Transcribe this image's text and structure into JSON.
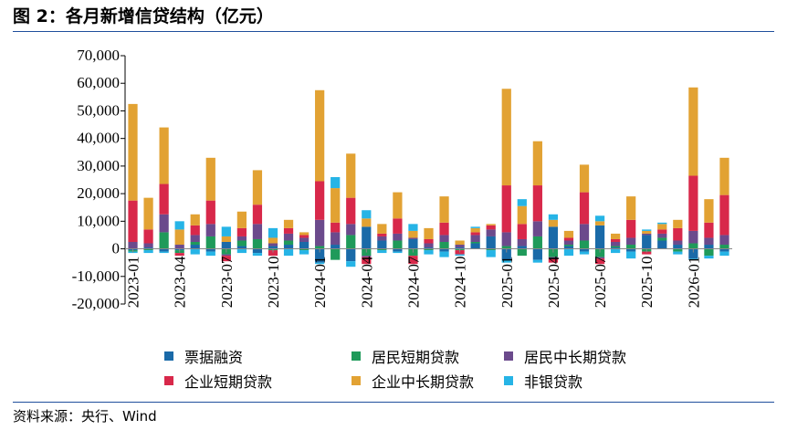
{
  "title": "图 2：各月新增信贷结构（亿元）",
  "source": "资料来源：央行、Wind",
  "colors": {
    "票据融资": "#1a6aa8",
    "居民短期贷款": "#1f9a5a",
    "居民中长期贷款": "#6b4a8c",
    "企业短期贷款": "#d8284a",
    "企业中长期贷款": "#e2a233",
    "非银贷款": "#26b4e6"
  },
  "chart_data": {
    "type": "bar",
    "stacked": true,
    "ylim": [
      -20000,
      70000
    ],
    "yticks": [
      "70,000",
      "60,000",
      "50,000",
      "40,000",
      "30,000",
      "20,000",
      "10,000",
      "0",
      "-10,000",
      "-20,000"
    ],
    "ytick_values": [
      70000,
      60000,
      50000,
      40000,
      30000,
      20000,
      10000,
      0,
      -10000,
      -20000
    ],
    "xtick_labels": [
      "2023-01",
      "2023-04",
      "2023-07",
      "2023-10",
      "2024-01",
      "2024-04",
      "2024-07",
      "2024-10",
      "2025-01",
      "2025-04",
      "2025-07",
      "2025-10",
      "2026-01"
    ],
    "xtick_indices": [
      0,
      3,
      6,
      9,
      12,
      15,
      18,
      21,
      24,
      27,
      30,
      33,
      36
    ],
    "categories": [
      "2023-01",
      "2023-02",
      "2023-03",
      "2023-04",
      "2023-05",
      "2023-06",
      "2023-07",
      "2023-08",
      "2023-09",
      "2023-10",
      "2023-11",
      "2023-12",
      "2024-01",
      "2024-02",
      "2024-03",
      "2024-04",
      "2024-05",
      "2024-06",
      "2024-07",
      "2024-08",
      "2024-09",
      "2024-10",
      "2024-11",
      "2024-12",
      "2025-01",
      "2025-02",
      "2025-03",
      "2025-04",
      "2025-05",
      "2025-06",
      "2025-07",
      "2025-08",
      "2025-09",
      "2025-10",
      "2025-11",
      "2025-12",
      "2026-01",
      "2026-02",
      "2026-03"
    ],
    "series": [
      {
        "name": "票据融资",
        "values": [
          -500,
          500,
          -1000,
          -500,
          1500,
          -1000,
          2500,
          1000,
          -1500,
          1000,
          1500,
          2500,
          -5000,
          1500,
          -4500,
          8000,
          3000,
          -1000,
          3500,
          500,
          -1000,
          500,
          2000,
          4500,
          -4000,
          1000,
          -4000,
          8000,
          1000,
          -1000,
          8500,
          500,
          -1000,
          5000,
          3000,
          1500,
          -3500,
          1500,
          -1000
        ]
      },
      {
        "name": "居民短期贷款",
        "values": [
          -500,
          -500,
          6000,
          -1000,
          1000,
          4500,
          -2000,
          2000,
          3500,
          -500,
          1500,
          -500,
          1000,
          -4000,
          5000,
          -2500,
          -500,
          3000,
          -2500,
          -500,
          2500,
          -500,
          500,
          -500,
          1000,
          -2500,
          4500,
          -3000,
          500,
          3000,
          -3000,
          500,
          1500,
          -1000,
          1000,
          -1000,
          2000,
          -2500,
          1500
        ]
      },
      {
        "name": "居民中长期贷款",
        "values": [
          2500,
          1500,
          6500,
          1500,
          2500,
          4500,
          -500,
          1500,
          5500,
          1000,
          2500,
          1500,
          9500,
          4500,
          4000,
          -500,
          1500,
          2500,
          500,
          1500,
          2500,
          1000,
          2500,
          2500,
          5000,
          2500,
          5500,
          -500,
          1500,
          6000,
          -500,
          1500,
          2500,
          500,
          1500,
          1500,
          4500,
          2500,
          3500
        ]
      },
      {
        "name": "企业短期贷款",
        "values": [
          15000,
          5000,
          11000,
          -1000,
          3500,
          8500,
          -2000,
          3000,
          7000,
          -2000,
          2000,
          1000,
          14000,
          3500,
          9500,
          -2500,
          1000,
          5500,
          -3000,
          1500,
          4500,
          -1500,
          1000,
          1500,
          17000,
          5500,
          13000,
          -1500,
          1000,
          11500,
          -2000,
          1000,
          6500,
          -1000,
          1500,
          4500,
          20000,
          5500,
          14500
        ]
      },
      {
        "name": "企业中长期贷款",
        "values": [
          35000,
          11500,
          20500,
          5500,
          4000,
          15500,
          2000,
          6000,
          12500,
          2000,
          3000,
          1000,
          33000,
          12500,
          16000,
          3000,
          3500,
          9500,
          2500,
          4000,
          9500,
          1500,
          1500,
          500,
          35000,
          6500,
          16000,
          2500,
          2500,
          10000,
          1500,
          2000,
          8500,
          1000,
          2000,
          3000,
          32000,
          8500,
          13500
        ]
      },
      {
        "name": "非银贷款",
        "values": [
          -500,
          -1000,
          -500,
          3000,
          -2000,
          -1500,
          3500,
          -1500,
          -1000,
          3500,
          -2500,
          -1500,
          -500,
          4000,
          -2000,
          3000,
          -1000,
          -500,
          2500,
          -1500,
          -2000,
          -500,
          500,
          -2500,
          -1000,
          2500,
          -1000,
          2000,
          -2500,
          -1000,
          2000,
          -1500,
          -2500,
          500,
          500,
          -1000,
          -500,
          -1000,
          -1500
        ]
      }
    ]
  },
  "legend": [
    {
      "label": "票据融资",
      "color": "#1a6aa8"
    },
    {
      "label": "居民短期贷款",
      "color": "#1f9a5a"
    },
    {
      "label": "居民中长期贷款",
      "color": "#6b4a8c"
    },
    {
      "label": "企业短期贷款",
      "color": "#d8284a"
    },
    {
      "label": "企业中长期贷款",
      "color": "#e2a233"
    },
    {
      "label": "非银贷款",
      "color": "#26b4e6"
    }
  ]
}
